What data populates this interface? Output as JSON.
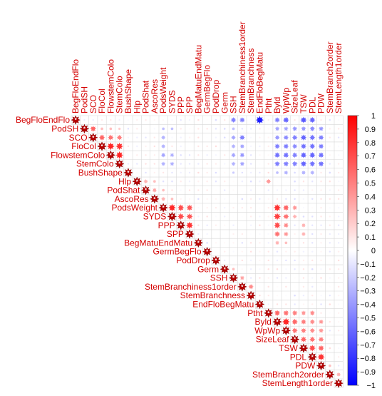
{
  "chart_data": {
    "type": "heatmap",
    "subtype": "correlogram-upper-triangle",
    "variables": [
      "BegFloEndFlo",
      "PodSH",
      "SCO",
      "FloCol",
      "FlowstemColo",
      "StemColo",
      "BushShape",
      "Hlp",
      "PodShat",
      "AscoRes",
      "PodsWeight",
      "SYDS",
      "PPP",
      "SPP",
      "BegMatuEndMatu",
      "GermBegFlo",
      "PodDrop",
      "Germ",
      "SSH",
      "StemBranchiness1order",
      "StemBranchness",
      "EndFloBegMatu",
      "Ptht",
      "Byld",
      "WpWp",
      "SizeLeaf",
      "TSW",
      "PDL",
      "PDW",
      "StemBranch2order",
      "StemLength1order"
    ],
    "diagonal_marker": "*",
    "correlations": [
      {
        "row": "PodSH",
        "col": "SCO",
        "r": 0.6
      },
      {
        "row": "PodSH",
        "col": "FloCol",
        "r": 0.25
      },
      {
        "row": "PodSH",
        "col": "FlowstemColo",
        "r": 0.25
      },
      {
        "row": "PodSH",
        "col": "StemColo",
        "r": 0.2
      },
      {
        "row": "SCO",
        "col": "FloCol",
        "r": 0.6
      },
      {
        "row": "SCO",
        "col": "FlowstemColo",
        "r": 0.55
      },
      {
        "row": "SCO",
        "col": "StemColo",
        "r": 0.5
      },
      {
        "row": "FloCol",
        "col": "FlowstemColo",
        "r": 0.85
      },
      {
        "row": "FloCol",
        "col": "StemColo",
        "r": 0.8
      },
      {
        "row": "FlowstemColo",
        "col": "StemColo",
        "r": 0.85
      },
      {
        "row": "BegFloEndFlo",
        "col": "SSH",
        "r": -0.5
      },
      {
        "row": "BegFloEndFlo",
        "col": "StemBranchiness1order",
        "r": -0.5
      },
      {
        "row": "BegFloEndFlo",
        "col": "EndFloBegMatu",
        "r": -0.9
      },
      {
        "row": "BegFloEndFlo",
        "col": "Byld",
        "r": -0.5
      },
      {
        "row": "BegFloEndFlo",
        "col": "WpWp",
        "r": -0.6
      },
      {
        "row": "BegFloEndFlo",
        "col": "TSW",
        "r": -0.65
      },
      {
        "row": "BegFloEndFlo",
        "col": "PDL",
        "r": -0.6
      },
      {
        "row": "PodSH",
        "col": "PodsWeight",
        "r": -0.25
      },
      {
        "row": "PodSH",
        "col": "SYDS",
        "r": -0.25
      },
      {
        "row": "PodSH",
        "col": "SSH",
        "r": -0.25
      },
      {
        "row": "PodSH",
        "col": "Byld",
        "r": -0.35
      },
      {
        "row": "PodSH",
        "col": "WpWp",
        "r": -0.35
      },
      {
        "row": "PodSH",
        "col": "SizeLeaf",
        "r": -0.4
      },
      {
        "row": "PodSH",
        "col": "TSW",
        "r": -0.4
      },
      {
        "row": "PodSH",
        "col": "PDL",
        "r": -0.45
      },
      {
        "row": "PodSH",
        "col": "PDW",
        "r": -0.4
      },
      {
        "row": "SCO",
        "col": "PodsWeight",
        "r": -0.3
      },
      {
        "row": "SCO",
        "col": "SSH",
        "r": -0.35
      },
      {
        "row": "SCO",
        "col": "StemBranchiness1order",
        "r": -0.5
      },
      {
        "row": "SCO",
        "col": "Byld",
        "r": -0.4
      },
      {
        "row": "SCO",
        "col": "WpWp",
        "r": -0.45
      },
      {
        "row": "SCO",
        "col": "SizeLeaf",
        "r": -0.5
      },
      {
        "row": "SCO",
        "col": "TSW",
        "r": -0.6
      },
      {
        "row": "SCO",
        "col": "PDL",
        "r": -0.55
      },
      {
        "row": "SCO",
        "col": "PDW",
        "r": -0.5
      },
      {
        "row": "FloCol",
        "col": "PodsWeight",
        "r": -0.3
      },
      {
        "row": "FloCol",
        "col": "SSH",
        "r": -0.3
      },
      {
        "row": "FloCol",
        "col": "StemBranchiness1order",
        "r": -0.35
      },
      {
        "row": "FloCol",
        "col": "Byld",
        "r": -0.5
      },
      {
        "row": "FloCol",
        "col": "WpWp",
        "r": -0.5
      },
      {
        "row": "FloCol",
        "col": "SizeLeaf",
        "r": -0.45
      },
      {
        "row": "FloCol",
        "col": "TSW",
        "r": -0.55
      },
      {
        "row": "FloCol",
        "col": "PDL",
        "r": -0.55
      },
      {
        "row": "FloCol",
        "col": "PDW",
        "r": -0.5
      },
      {
        "row": "FlowstemColo",
        "col": "PodsWeight",
        "r": -0.35
      },
      {
        "row": "FlowstemColo",
        "col": "SYDS",
        "r": -0.3
      },
      {
        "row": "FlowstemColo",
        "col": "SSH",
        "r": -0.35
      },
      {
        "row": "FlowstemColo",
        "col": "StemBranchiness1order",
        "r": -0.4
      },
      {
        "row": "FlowstemColo",
        "col": "Byld",
        "r": -0.55
      },
      {
        "row": "FlowstemColo",
        "col": "WpWp",
        "r": -0.55
      },
      {
        "row": "FlowstemColo",
        "col": "SizeLeaf",
        "r": -0.5
      },
      {
        "row": "FlowstemColo",
        "col": "TSW",
        "r": -0.6
      },
      {
        "row": "FlowstemColo",
        "col": "PDL",
        "r": -0.6
      },
      {
        "row": "FlowstemColo",
        "col": "PDW",
        "r": -0.55
      },
      {
        "row": "StemColo",
        "col": "PodsWeight",
        "r": -0.3
      },
      {
        "row": "StemColo",
        "col": "SYDS",
        "r": -0.3
      },
      {
        "row": "StemColo",
        "col": "SSH",
        "r": -0.3
      },
      {
        "row": "StemColo",
        "col": "StemBranchiness1order",
        "r": -0.35
      },
      {
        "row": "StemColo",
        "col": "Byld",
        "r": -0.5
      },
      {
        "row": "StemColo",
        "col": "WpWp",
        "r": -0.5
      },
      {
        "row": "StemColo",
        "col": "SizeLeaf",
        "r": -0.5
      },
      {
        "row": "StemColo",
        "col": "TSW",
        "r": -0.6
      },
      {
        "row": "StemColo",
        "col": "PDL",
        "r": -0.55
      },
      {
        "row": "StemColo",
        "col": "PDW",
        "r": -0.55
      },
      {
        "row": "BushShape",
        "col": "SSH",
        "r": -0.2
      },
      {
        "row": "BushShape",
        "col": "Byld",
        "r": -0.25
      },
      {
        "row": "BushShape",
        "col": "WpWp",
        "r": -0.3
      },
      {
        "row": "BushShape",
        "col": "TSW",
        "r": -0.3
      },
      {
        "row": "BushShape",
        "col": "PDL",
        "r": -0.3
      },
      {
        "row": "Hlp",
        "col": "PodShat",
        "r": 0.3
      },
      {
        "row": "Hlp",
        "col": "AscoRes",
        "r": 0.25
      },
      {
        "row": "Hlp",
        "col": "Ptht",
        "r": 0.4
      },
      {
        "row": "PodShat",
        "col": "AscoRes",
        "r": 0.35
      },
      {
        "row": "PodShat",
        "col": "PodsWeight",
        "r": 0.25
      },
      {
        "row": "AscoRes",
        "col": "PodsWeight",
        "r": 0.3
      },
      {
        "row": "AscoRes",
        "col": "SYDS",
        "r": 0.25
      },
      {
        "row": "PodsWeight",
        "col": "SYDS",
        "r": 0.85
      },
      {
        "row": "PodsWeight",
        "col": "PPP",
        "r": 0.7
      },
      {
        "row": "PodsWeight",
        "col": "SPP",
        "r": 0.65
      },
      {
        "row": "PodsWeight",
        "col": "Byld",
        "r": 0.8
      },
      {
        "row": "PodsWeight",
        "col": "WpWp",
        "r": 0.6
      },
      {
        "row": "PodsWeight",
        "col": "SizeLeaf",
        "r": 0.4
      },
      {
        "row": "SYDS",
        "col": "PPP",
        "r": 0.7
      },
      {
        "row": "SYDS",
        "col": "SPP",
        "r": 0.65
      },
      {
        "row": "SYDS",
        "col": "Byld",
        "r": 0.75
      },
      {
        "row": "SYDS",
        "col": "WpWp",
        "r": 0.55
      },
      {
        "row": "SYDS",
        "col": "SizeLeaf",
        "r": 0.3
      },
      {
        "row": "PPP",
        "col": "SPP",
        "r": 0.8
      },
      {
        "row": "PPP",
        "col": "Byld",
        "r": 0.7
      },
      {
        "row": "PPP",
        "col": "WpWp",
        "r": 0.45
      },
      {
        "row": "PPP",
        "col": "TSW",
        "r": 0.3
      },
      {
        "row": "SPP",
        "col": "Byld",
        "r": 0.55
      },
      {
        "row": "SPP",
        "col": "WpWp",
        "r": 0.4
      },
      {
        "row": "SPP",
        "col": "TSW",
        "r": 0.3
      },
      {
        "row": "BegMatuEndMatu",
        "col": "Byld",
        "r": 0.3
      },
      {
        "row": "BegMatuEndMatu",
        "col": "WpWp",
        "r": 0.25
      },
      {
        "row": "Germ",
        "col": "SSH",
        "r": 0.25
      },
      {
        "row": "SSH",
        "col": "StemBranchiness1order",
        "r": 0.35
      },
      {
        "row": "StemBranchiness1order",
        "col": "StemBranchness",
        "r": 0.45
      },
      {
        "row": "Ptht",
        "col": "Byld",
        "r": 0.6
      },
      {
        "row": "Ptht",
        "col": "WpWp",
        "r": 0.55
      },
      {
        "row": "Ptht",
        "col": "SizeLeaf",
        "r": 0.5
      },
      {
        "row": "Ptht",
        "col": "TSW",
        "r": 0.4
      },
      {
        "row": "Ptht",
        "col": "PDL",
        "r": 0.45
      },
      {
        "row": "Byld",
        "col": "WpWp",
        "r": 0.85
      },
      {
        "row": "Byld",
        "col": "SizeLeaf",
        "r": 0.6
      },
      {
        "row": "Byld",
        "col": "TSW",
        "r": 0.5
      },
      {
        "row": "Byld",
        "col": "PDL",
        "r": 0.45
      },
      {
        "row": "Byld",
        "col": "PDW",
        "r": 0.4
      },
      {
        "row": "WpWp",
        "col": "SizeLeaf",
        "r": 0.55
      },
      {
        "row": "WpWp",
        "col": "TSW",
        "r": 0.5
      },
      {
        "row": "WpWp",
        "col": "PDL",
        "r": 0.45
      },
      {
        "row": "WpWp",
        "col": "PDW",
        "r": 0.4
      },
      {
        "row": "SizeLeaf",
        "col": "TSW",
        "r": 0.6
      },
      {
        "row": "SizeLeaf",
        "col": "PDL",
        "r": 0.55
      },
      {
        "row": "SizeLeaf",
        "col": "PDW",
        "r": 0.5
      },
      {
        "row": "TSW",
        "col": "PDL",
        "r": 0.7
      },
      {
        "row": "TSW",
        "col": "PDW",
        "r": 0.6
      },
      {
        "row": "PDL",
        "col": "PDW",
        "r": 0.8
      },
      {
        "row": "PDW",
        "col": "StemBranch2order",
        "r": 0.25
      },
      {
        "row": "StemBranch2order",
        "col": "StemLength1order",
        "r": 0.3
      }
    ],
    "colorbar": {
      "range": [
        -1,
        1
      ],
      "ticks": [
        "1",
        "0.9",
        "0.8",
        "0.7",
        "0.6",
        "0.5",
        "0.4",
        "0.3",
        "0.2",
        "0.1",
        "0",
        "−0.1",
        "−0.2",
        "−0.3",
        "−0.4",
        "−0.5",
        "−0.6",
        "−0.7",
        "−0.8",
        "−0.9",
        "−1"
      ],
      "colors": {
        "negative": "#0000ff",
        "zero": "#ffffff",
        "positive": "#ff0000"
      }
    },
    "grid": true,
    "legend": "right"
  }
}
